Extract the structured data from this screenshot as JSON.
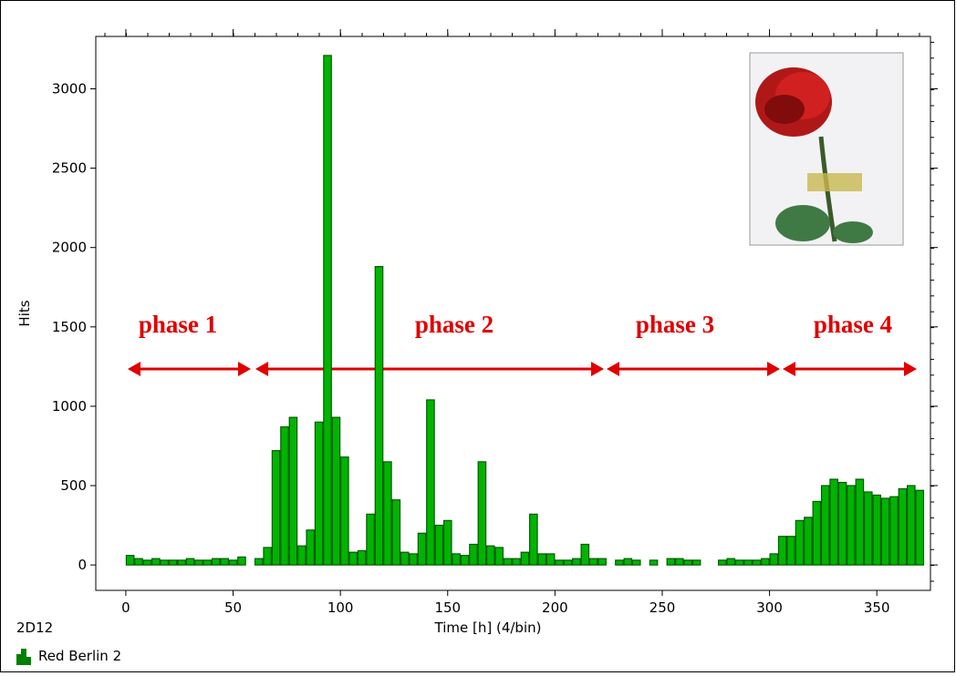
{
  "chart_data": {
    "type": "histogram",
    "x_label": "Time [h] (4/bin)",
    "y_label": "Hits",
    "caption": "2D12",
    "annotations": [
      "phase 1",
      "phase 2",
      "phase 3",
      "phase 4"
    ],
    "bins": [
      0,
      4,
      8,
      12,
      16,
      20,
      24,
      28,
      32,
      36,
      40,
      44,
      48,
      52,
      56,
      60,
      64,
      68,
      72,
      76,
      80,
      84,
      88,
      92,
      96,
      100,
      104,
      108,
      112,
      116,
      120,
      124,
      128,
      132,
      136,
      140,
      144,
      148,
      152,
      156,
      160,
      164,
      168,
      172,
      176,
      180,
      184,
      188,
      192,
      196,
      200,
      204,
      208,
      212,
      216,
      220,
      224,
      228,
      232,
      236,
      240,
      244,
      248,
      252,
      256,
      260,
      264,
      268,
      272,
      276,
      280,
      284,
      288,
      292,
      296,
      300,
      304,
      308,
      312,
      316,
      320,
      324,
      328,
      332,
      336,
      340,
      344,
      348,
      352,
      356,
      360,
      364,
      368,
      372
    ],
    "series": [
      {
        "name": "Red Berlin 2",
        "color": "#00b400",
        "values": [
          60,
          40,
          30,
          40,
          30,
          30,
          30,
          40,
          30,
          30,
          40,
          40,
          30,
          50,
          0,
          40,
          110,
          720,
          870,
          930,
          120,
          220,
          900,
          3210,
          930,
          680,
          80,
          90,
          320,
          1880,
          650,
          410,
          80,
          70,
          200,
          1040,
          250,
          280,
          70,
          60,
          130,
          650,
          120,
          110,
          40,
          40,
          80,
          320,
          70,
          70,
          30,
          30,
          40,
          130,
          40,
          40,
          0,
          30,
          40,
          30,
          0,
          30,
          0,
          40,
          40,
          30,
          30,
          0,
          0,
          30,
          40,
          30,
          30,
          30,
          40,
          70,
          180,
          180,
          280,
          300,
          400,
          500,
          540,
          520,
          500,
          540,
          460,
          440,
          420,
          430,
          480,
          500,
          470
        ]
      }
    ],
    "xlim": [
      -14,
      375
    ],
    "ylim": [
      -160,
      3330
    ],
    "xticks": [
      0,
      50,
      100,
      150,
      200,
      250,
      300,
      350
    ],
    "yticks": [
      0,
      500,
      1000,
      1500,
      2000,
      2500,
      3000
    ]
  }
}
